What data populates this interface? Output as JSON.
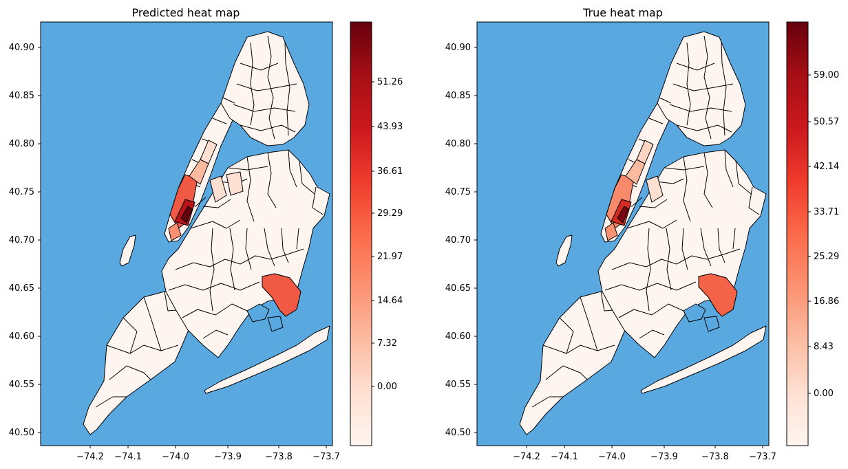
{
  "maps": [
    {
      "title": "Predicted heat map",
      "xticks": [
        "−74.2",
        "−74.1",
        "−74.0",
        "−73.9",
        "−73.8",
        "−73.7"
      ],
      "yticks": [
        "40.90",
        "40.85",
        "40.80",
        "40.75",
        "40.70",
        "40.65",
        "40.60",
        "40.55",
        "40.50"
      ],
      "colorbar_ticks": [
        "51.26",
        "43.93",
        "36.61",
        "29.29",
        "21.97",
        "14.64",
        "7.32",
        "0.00"
      ]
    },
    {
      "title": "True heat map",
      "xticks": [
        "−74.2",
        "−74.1",
        "−74.0",
        "−73.9",
        "−73.8",
        "−73.7"
      ],
      "yticks": [
        "40.90",
        "40.85",
        "40.80",
        "40.75",
        "40.70",
        "40.65",
        "40.60",
        "40.55",
        "40.50"
      ],
      "colorbar_ticks": [
        "59.00",
        "50.57",
        "42.14",
        "33.71",
        "25.29",
        "16.86",
        "8.43",
        "0.00"
      ]
    }
  ],
  "colors": {
    "water": "#5aa8e0",
    "land_low": "#fff5f0",
    "hot_mid": "#f05a45",
    "hot_high": "#b8141c",
    "hot_max": "#67000d",
    "border": "#000000"
  },
  "colormap": "Reds"
}
